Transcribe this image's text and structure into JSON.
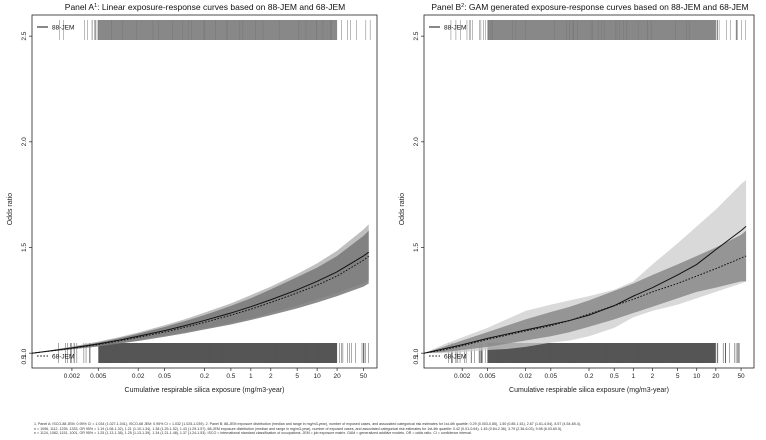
{
  "chart_data": [
    {
      "type": "line",
      "panel_id": "A",
      "title": "Panel A",
      "title_sup": "1",
      "title_rest": ": Linear exposure-response curves based on 88-JEM and 68-JEM",
      "xlabel": "Cumulative respirable silica exposure (mg/m3-year)",
      "ylabel": "Odds ratio",
      "xscale": "log",
      "xlim": [
        0.0005,
        80
      ],
      "ylim": [
        0.93,
        2.6
      ],
      "x_ticks": [
        0.002,
        0.005,
        0.02,
        0.05,
        0.2,
        0.5,
        1,
        2,
        5,
        10,
        20,
        50
      ],
      "x_tick_labels": [
        "0.002",
        "0.005",
        "0.02",
        "0.05",
        "0.2",
        "0.5",
        "1",
        "2",
        "5",
        "10",
        "20",
        "50"
      ],
      "y_ticks": [
        1.0,
        1.5,
        2.0,
        2.5
      ],
      "y_tick_labels": [
        "1.0",
        "1.5",
        "2.0",
        "2.5"
      ],
      "legend_top": "88-JEM",
      "legend_bottom": "68-JEM",
      "x": [
        0.0005,
        0.001,
        0.002,
        0.005,
        0.01,
        0.02,
        0.05,
        0.1,
        0.2,
        0.5,
        1,
        2,
        5,
        10,
        20,
        50,
        60
      ],
      "series": [
        {
          "name": "88-JEM",
          "style": "solid",
          "color": "#111111",
          "values": [
            1.0,
            1.012,
            1.025,
            1.044,
            1.061,
            1.08,
            1.107,
            1.13,
            1.155,
            1.19,
            1.22,
            1.253,
            1.3,
            1.34,
            1.385,
            1.46,
            1.478
          ]
        },
        {
          "name": "88-JEM 95% CI lower",
          "style": "band_lower",
          "color": "#aaaaaa",
          "values": [
            1.0,
            1.01,
            1.02,
            1.035,
            1.048,
            1.062,
            1.084,
            1.1,
            1.118,
            1.143,
            1.165,
            1.19,
            1.225,
            1.255,
            1.285,
            1.33,
            1.345
          ]
        },
        {
          "name": "88-JEM 95% CI upper",
          "style": "band_upper",
          "color": "#aaaaaa",
          "values": [
            1.0,
            1.015,
            1.032,
            1.055,
            1.075,
            1.098,
            1.132,
            1.16,
            1.192,
            1.236,
            1.275,
            1.315,
            1.375,
            1.425,
            1.485,
            1.585,
            1.61
          ]
        },
        {
          "name": "68-JEM",
          "style": "dotted",
          "color": "#111111",
          "values": [
            1.0,
            1.011,
            1.023,
            1.041,
            1.057,
            1.075,
            1.1,
            1.122,
            1.146,
            1.18,
            1.208,
            1.24,
            1.285,
            1.322,
            1.365,
            1.44,
            1.458
          ]
        },
        {
          "name": "68-JEM 95% CI lower",
          "style": "band_lower",
          "color": "#777777",
          "values": [
            1.0,
            1.009,
            1.018,
            1.032,
            1.045,
            1.058,
            1.078,
            1.094,
            1.112,
            1.136,
            1.157,
            1.18,
            1.212,
            1.24,
            1.27,
            1.315,
            1.33
          ]
        },
        {
          "name": "68-JEM 95% CI upper",
          "style": "band_upper",
          "color": "#777777",
          "values": [
            1.0,
            1.013,
            1.028,
            1.05,
            1.07,
            1.092,
            1.124,
            1.151,
            1.18,
            1.224,
            1.26,
            1.302,
            1.36,
            1.405,
            1.46,
            1.555,
            1.58
          ]
        }
      ],
      "rug_top_color": "#888888",
      "rug_bottom_color": "#555555"
    },
    {
      "type": "line",
      "panel_id": "B",
      "title": "Panel B",
      "title_sup": "2",
      "title_rest": ": GAM generated exposure-response curves based on 88-JEM and 68-JEM",
      "xlabel": "Cumulative respirable silica exposure (mg/m3-year)",
      "ylabel": "Odds ratio",
      "xscale": "log",
      "xlim": [
        0.0005,
        80
      ],
      "ylim": [
        0.93,
        2.6
      ],
      "x_ticks": [
        0.002,
        0.005,
        0.02,
        0.05,
        0.2,
        0.5,
        1,
        2,
        5,
        10,
        20,
        50
      ],
      "x_tick_labels": [
        "0.002",
        "0.005",
        "0.02",
        "0.05",
        "0.2",
        "0.5",
        "1",
        "2",
        "5",
        "10",
        "20",
        "50"
      ],
      "y_ticks": [
        1.0,
        1.5,
        2.0,
        2.5
      ],
      "y_tick_labels": [
        "1.0",
        "1.5",
        "2.0",
        "2.5"
      ],
      "legend_top": "88-JEM",
      "legend_bottom": "68-JEM",
      "x": [
        0.0005,
        0.001,
        0.002,
        0.005,
        0.01,
        0.02,
        0.05,
        0.1,
        0.2,
        0.5,
        1,
        2,
        5,
        10,
        20,
        50,
        60
      ],
      "series": [
        {
          "name": "88-JEM",
          "style": "solid",
          "color": "#111111",
          "values": [
            1.0,
            1.02,
            1.04,
            1.07,
            1.09,
            1.11,
            1.135,
            1.155,
            1.18,
            1.225,
            1.27,
            1.31,
            1.37,
            1.42,
            1.49,
            1.58,
            1.6
          ]
        },
        {
          "name": "88-JEM 95% CI lower",
          "style": "band_lower",
          "color": "#cccccc",
          "values": [
            1.0,
            1.0,
            1.005,
            1.015,
            1.02,
            1.03,
            1.05,
            1.06,
            1.08,
            1.12,
            1.17,
            1.2,
            1.23,
            1.26,
            1.29,
            1.33,
            1.34
          ]
        },
        {
          "name": "88-JEM 95% CI upper",
          "style": "band_upper",
          "color": "#cccccc",
          "values": [
            1.0,
            1.04,
            1.075,
            1.12,
            1.16,
            1.2,
            1.23,
            1.25,
            1.27,
            1.3,
            1.34,
            1.42,
            1.52,
            1.6,
            1.68,
            1.8,
            1.82
          ]
        },
        {
          "name": "68-JEM",
          "style": "dotted",
          "color": "#111111",
          "values": [
            1.0,
            1.015,
            1.035,
            1.065,
            1.085,
            1.105,
            1.13,
            1.155,
            1.185,
            1.225,
            1.255,
            1.29,
            1.33,
            1.365,
            1.4,
            1.45,
            1.46
          ]
        },
        {
          "name": "68-JEM 95% CI lower",
          "style": "band_lower",
          "color": "#888888",
          "values": [
            1.0,
            1.005,
            1.015,
            1.03,
            1.045,
            1.06,
            1.08,
            1.1,
            1.125,
            1.16,
            1.19,
            1.22,
            1.26,
            1.29,
            1.31,
            1.34,
            1.34
          ]
        },
        {
          "name": "68-JEM 95% CI upper",
          "style": "band_upper",
          "color": "#888888",
          "values": [
            1.0,
            1.03,
            1.06,
            1.1,
            1.13,
            1.16,
            1.195,
            1.22,
            1.25,
            1.295,
            1.33,
            1.37,
            1.42,
            1.46,
            1.5,
            1.56,
            1.58
          ]
        }
      ],
      "rug_top_color": "#888888",
      "rug_bottom_color": "#555555"
    }
  ],
  "footnote": {
    "line1": "1. Panel A: ISCO-88 JEM: 0.95% CI = 1.034 (1.027-1.041), ISCO-68 JEM: 0.95% CI = 1.032 (1.025-1.039). 2. Panel B: 88-JEM exposure distribution (median and range in mg/m3-year), number of exposed cases, and associated categorical risk estimates for 1st-4th quartile: 0.29 (0.003-0.85), 1.50 (0.85-1.61), 2.67 (1.61-4.54), 8.57 (4.54-65.4),",
    "line2": "n = 1096, 1112, 1235, 1333, OR 95% = 1.19 (1.08-1.32), 1.21 (1.10-1.34), 1.38 (1.25-1.52), 1.43 (1.29-1.57). 68-JEM exposure distribution (median and range in mg/m3-year), number of exposed cases, and associated categorical risk estimates for 1st-4th quartile: 0.42 (0.01-0.64), 1.45 (0.64-2.36), 3.79 (2.36-6.03), 9.98 (6.03-60.5),",
    "line3": "n = 1124, 1082, 1151, 1001, OR 95% = 1.25 (1.13-1.38), 1.25 (1.13-1.39), 1.34 (1.21-1.48), 1.37 (1.24-1.53). ISCO = international standard classification of occupations. JEM = job exposure matrix. GAM = generalized additive models. OR = odds ratio. CI = confidence interval."
  }
}
